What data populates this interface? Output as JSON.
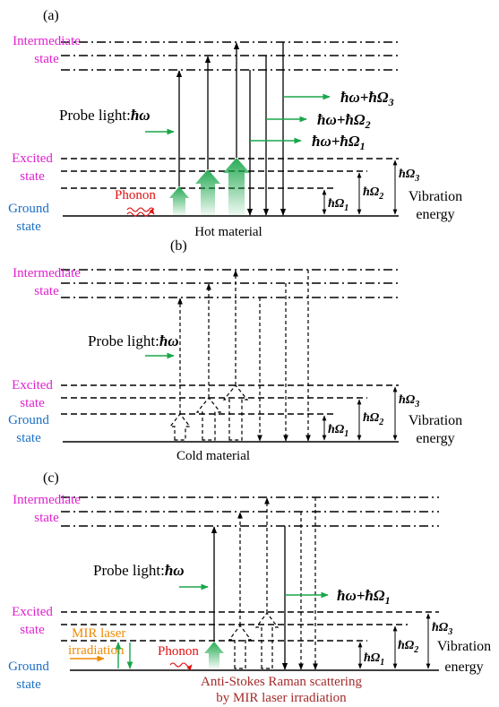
{
  "colors": {
    "magenta": "#e020d0",
    "blue": "#1a6fc4",
    "green": "#1aa64a",
    "red": "#e01010",
    "orange": "#f08a00",
    "darkred": "#a52a2a",
    "black": "#000000"
  },
  "labels": {
    "intermediate": "Intermediate",
    "state": "state",
    "excited": "Excited",
    "ground": "Ground",
    "probe": "Probe light:",
    "hw": "ħω",
    "vibration": "Vibration",
    "energy": "energy",
    "omega1": "ħΩ",
    "sub1": "1",
    "sub2": "2",
    "sub3": "3",
    "phonon": "Phonon",
    "plus": "ħω+ħΩ"
  },
  "panels": {
    "a": {
      "tag": "(a)",
      "caption": "Hot material"
    },
    "b": {
      "tag": "(b)",
      "caption": "Cold material"
    },
    "c": {
      "tag": "(c)",
      "mir1": "MIR laser",
      "mir2": "irradiation",
      "caption1": "Anti-Stokes Raman scattering",
      "caption2": "by MIR laser irradiation"
    }
  }
}
